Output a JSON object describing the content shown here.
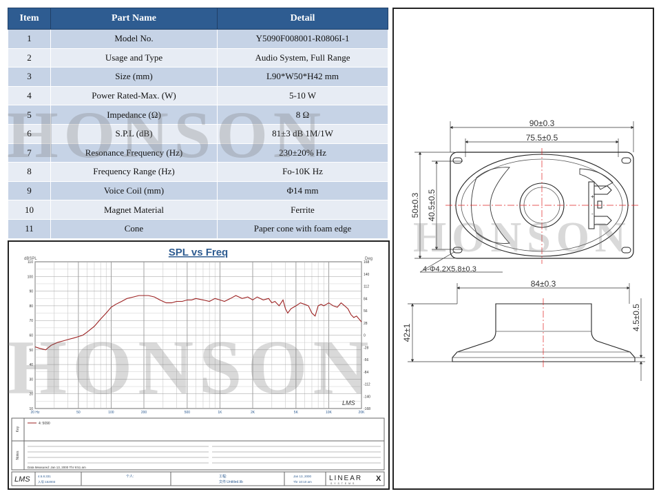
{
  "table": {
    "headers": [
      "Item",
      "Part Name",
      "Detail"
    ],
    "rows": [
      {
        "item": "1",
        "part": "Model No.",
        "detail": "Y5090F008001-R0806I-1"
      },
      {
        "item": "2",
        "part": "Usage and Type",
        "detail": "Audio System, Full Range"
      },
      {
        "item": "3",
        "part": "Size (mm)",
        "detail": "L90*W50*H42 mm"
      },
      {
        "item": "4",
        "part": "Power Rated-Max. (W)",
        "detail": "5-10 W"
      },
      {
        "item": "5",
        "part": "Impedance (Ω)",
        "detail": "8 Ω"
      },
      {
        "item": "6",
        "part": "S.P.L (dB)",
        "detail": "81±3 dB   1M/1W"
      },
      {
        "item": "7",
        "part": "Resonance Frequency (Hz)",
        "detail": "230±20% Hz"
      },
      {
        "item": "8",
        "part": "Frequency Range (Hz)",
        "detail": "Fo-10K Hz"
      },
      {
        "item": "9",
        "part": "Voice Coil (mm)",
        "detail": "Φ14 mm"
      },
      {
        "item": "10",
        "part": "Magnet Material",
        "detail": "Ferrite"
      },
      {
        "item": "11",
        "part": "Cone",
        "detail": "Paper cone with foam edge"
      }
    ]
  },
  "watermark": "HONSON",
  "chart": {
    "title": "SPL vs Freq",
    "ylabel_left": "dBSPL",
    "ylabel_right": "Deg",
    "left_ticks": [
      "110",
      "100",
      "90",
      "80",
      "70",
      "60",
      "50",
      "40",
      "30",
      "20",
      "10"
    ],
    "right_ticks": [
      "168",
      "140",
      "112",
      "84",
      "56",
      "28",
      "0",
      "-28",
      "-56",
      "-84",
      "-112",
      "-140",
      "-168"
    ],
    "x_ticks": [
      "20 Hz",
      "50",
      "100",
      "200",
      "500",
      "1K",
      "2K",
      "5K",
      "10K",
      "20K"
    ],
    "lms_logo": "LMS",
    "legend_side": "Key",
    "notes_side": "Notes",
    "legend_entry": "4: 5090",
    "data_measured": "Data Measured: Jan 13, 2000  Thr 9:51 am",
    "footer": {
      "logo": "LMS",
      "version": "4.5.8.331",
      "serial": "入号:152003",
      "user_label": "个人:",
      "project_label": "工程:",
      "file_label": "文件:Untitled.lib",
      "date": "Jan 13, 2000",
      "time": "Thr 10:10 am",
      "brand": "LINEAR",
      "brand_x": "X",
      "brand_sub": "S Y S T E M S"
    }
  },
  "chart_data": {
    "type": "line",
    "title": "SPL vs Freq",
    "xlabel": "",
    "ylabel": "dBSPL",
    "x_scale": "log",
    "xlim": [
      20,
      20000
    ],
    "ylim": [
      10,
      110
    ],
    "grid": true,
    "series": [
      {
        "name": "4: 5090",
        "x": [
          20,
          22,
          25,
          28,
          32,
          36,
          40,
          45,
          50,
          55,
          60,
          70,
          80,
          90,
          100,
          110,
          125,
          140,
          160,
          180,
          200,
          220,
          250,
          280,
          320,
          360,
          400,
          450,
          500,
          550,
          600,
          700,
          800,
          900,
          1000,
          1100,
          1250,
          1400,
          1600,
          1800,
          2000,
          2200,
          2500,
          2800,
          3000,
          3200,
          3500,
          3800,
          4000,
          4200,
          4500,
          5000,
          5500,
          6000,
          6500,
          7000,
          7500,
          8000,
          8500,
          9000,
          9500,
          10000,
          11000,
          12000,
          13000,
          14000,
          15000,
          16000,
          17000,
          18000,
          19000,
          20000
        ],
        "values": [
          52,
          51,
          50,
          53,
          55,
          56,
          57,
          58,
          59,
          60,
          62,
          66,
          71,
          75,
          79,
          81,
          83,
          85,
          86,
          87,
          87,
          87,
          86,
          84,
          82,
          82,
          83,
          83,
          84,
          84,
          85,
          84,
          83,
          85,
          84,
          83,
          85,
          87,
          85,
          86,
          84,
          86,
          84,
          85,
          82,
          83,
          80,
          84,
          78,
          75,
          78,
          80,
          82,
          81,
          80,
          75,
          73,
          80,
          81,
          80,
          81,
          82,
          80,
          79,
          82,
          80,
          78,
          74,
          72,
          73,
          71,
          69
        ]
      }
    ]
  },
  "drawing": {
    "top_view": {
      "overall_length": "90±0.3",
      "inner_length": "75.5±0.5",
      "overall_width": "50±0.3",
      "inner_width": "40.5±0.5",
      "holes": "4-Φ4.2X5.8±0.3"
    },
    "side_view": {
      "frame_length": "84±0.3",
      "height": "42±1",
      "flange": "4.5±0.5"
    },
    "terminal_plus": "+",
    "terminal_minus": "-"
  }
}
